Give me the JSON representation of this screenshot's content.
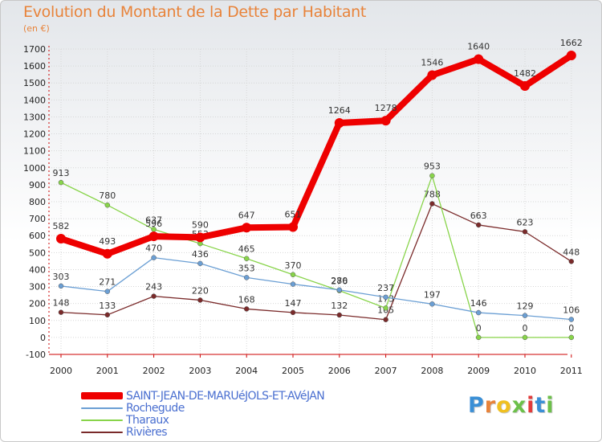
{
  "title": "Evolution du Montant de la Dette par Habitant",
  "unit_label": "(en €)",
  "brand": "Proxiti",
  "chart_data": {
    "type": "line",
    "title": "Evolution du Montant de la Dette par Habitant",
    "ylabel": "(en €)",
    "x": [
      "2000",
      "2001",
      "2002",
      "2003",
      "2004",
      "2005",
      "2006",
      "2007",
      "2008",
      "2009",
      "2010",
      "2011"
    ],
    "ylim": [
      -100,
      1700
    ],
    "yticks": [
      -100,
      0,
      100,
      200,
      300,
      400,
      500,
      600,
      700,
      800,
      900,
      1000,
      1100,
      1200,
      1300,
      1400,
      1500,
      1600,
      1700
    ],
    "grid": true,
    "legend_position": "bottom-left",
    "series": [
      {
        "name": "SAINT-JEAN-DE-MARUéJOLS-ET-AVéJAN",
        "color": "#ee0000",
        "values": [
          582,
          493,
          596,
          590,
          647,
          651,
          1264,
          1278,
          1546,
          1640,
          1482,
          1662
        ],
        "show_labels": [
          true,
          true,
          true,
          true,
          true,
          true,
          true,
          true,
          true,
          true,
          true,
          true
        ]
      },
      {
        "name": "Rochegude",
        "color": "#6b9fd4",
        "values": [
          303,
          271,
          470,
          436,
          353,
          314,
          280,
          237,
          197,
          146,
          129,
          106
        ],
        "show_labels": [
          true,
          true,
          true,
          true,
          true,
          false,
          true,
          true,
          true,
          true,
          true,
          true
        ]
      },
      {
        "name": "Tharaux",
        "color": "#88d44a",
        "values": [
          913,
          780,
          637,
          553,
          465,
          370,
          276,
          173,
          953,
          0,
          0,
          0
        ],
        "show_labels": [
          true,
          true,
          true,
          true,
          true,
          true,
          true,
          true,
          true,
          true,
          true,
          true
        ]
      },
      {
        "name": "Rivières",
        "color": "#7a2a2a",
        "values": [
          148,
          133,
          243,
          220,
          168,
          147,
          132,
          105,
          788,
          663,
          623,
          448
        ],
        "show_labels": [
          true,
          true,
          true,
          true,
          true,
          true,
          true,
          true,
          true,
          true,
          true,
          true
        ]
      }
    ]
  }
}
